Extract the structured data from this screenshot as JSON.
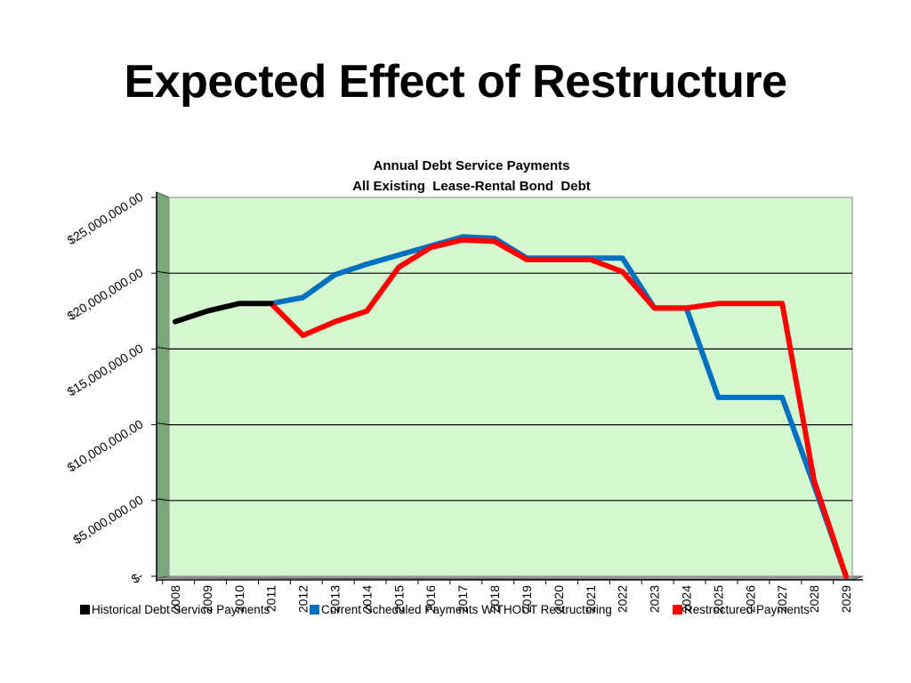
{
  "slide": {
    "title": "Expected Effect of Restructure"
  },
  "chart_data": {
    "type": "line",
    "title": "Annual Debt Service Payments",
    "subtitle": "All Existing  Lease-Rental Bond  Debt",
    "xlabel": "",
    "ylabel": "",
    "categories": [
      "2008",
      "2009",
      "2010",
      "2011",
      "2012",
      "2013",
      "2014",
      "2015",
      "2016",
      "2017",
      "2018",
      "2019",
      "2020",
      "2021",
      "2022",
      "2023",
      "2024",
      "2025",
      "2026",
      "2027",
      "2028",
      "2029"
    ],
    "x_tick_labels": [
      "2008",
      "2009",
      "2010",
      "2011",
      "2012",
      "2013",
      "2014",
      "2015",
      "2016",
      "2017",
      "2018",
      "2019",
      "2020",
      "2021",
      "2022",
      "2023",
      "2024",
      "2025",
      "2026",
      "2027",
      "2028",
      "2029"
    ],
    "ylim": [
      0,
      25000000
    ],
    "y_ticks": [
      0,
      5000000,
      10000000,
      15000000,
      20000000,
      25000000
    ],
    "y_tick_labels": [
      "$-",
      "$5,000,000.00",
      "$10,000,000.00",
      "$15,000,000.00",
      "$20,000,000.00",
      "$25,000,000.00"
    ],
    "grid": true,
    "legend_position": "bottom",
    "plot_background": "#d4f7cf",
    "series": [
      {
        "name": "Historical Debt Service Payments",
        "color": "#000000",
        "values": [
          16800000,
          17500000,
          18000000,
          18000000,
          null,
          null,
          null,
          null,
          null,
          null,
          null,
          null,
          null,
          null,
          null,
          null,
          null,
          null,
          null,
          null,
          null,
          null
        ]
      },
      {
        "name": "Current Scheduled Payments WITHOUT Restructuring",
        "color": "#0070c0",
        "values": [
          null,
          null,
          null,
          18000000,
          18400000,
          19900000,
          20600000,
          21200000,
          21800000,
          22400000,
          22300000,
          21000000,
          21000000,
          21000000,
          21000000,
          17700000,
          17700000,
          11800000,
          11800000,
          11800000,
          6000000,
          0
        ]
      },
      {
        "name": "Restructured Payments",
        "color": "#ff0000",
        "values": [
          null,
          null,
          null,
          18000000,
          15900000,
          16800000,
          17500000,
          20400000,
          21700000,
          22200000,
          22100000,
          20900000,
          20900000,
          20900000,
          20100000,
          17700000,
          17700000,
          18000000,
          18000000,
          18000000,
          6300000,
          0
        ]
      }
    ]
  }
}
